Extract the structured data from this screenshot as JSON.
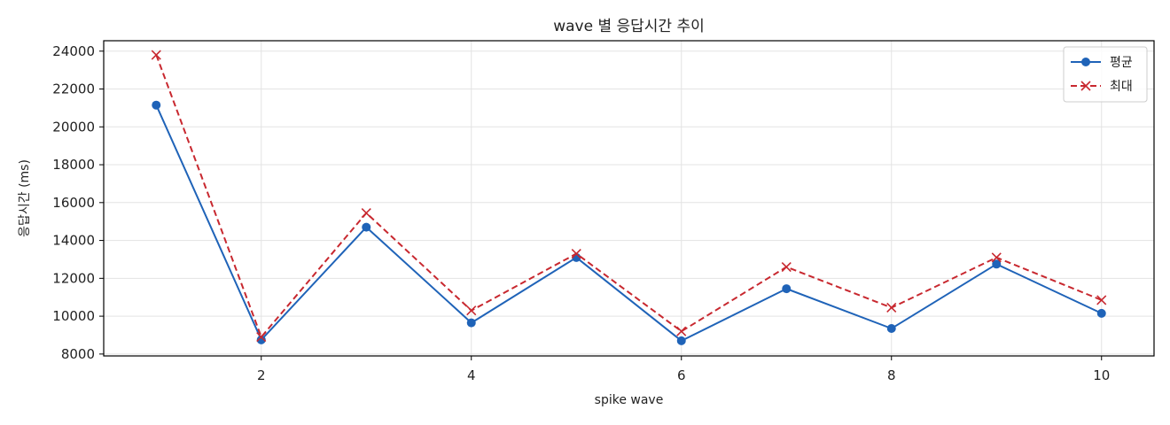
{
  "chart_data": {
    "type": "line",
    "title": "wave 별 응답시간 추이",
    "xlabel": "spike wave",
    "ylabel": "응답시간 (ms)",
    "x": [
      1,
      2,
      3,
      4,
      5,
      6,
      7,
      8,
      9,
      10
    ],
    "series": [
      {
        "name": "평균",
        "values": [
          21150,
          8750,
          14700,
          9650,
          13100,
          8700,
          11450,
          9350,
          12750,
          10150
        ],
        "color": "#1f63b8",
        "marker": "circle",
        "line_style": "solid"
      },
      {
        "name": "최대",
        "values": [
          23800,
          8900,
          15450,
          10300,
          13300,
          9200,
          12600,
          10450,
          13100,
          10850
        ],
        "color": "#c8282f",
        "marker": "x",
        "line_style": "dashed"
      }
    ],
    "xlim": [
      0.5,
      10.5
    ],
    "ylim": [
      7900,
      24550
    ],
    "xticks": [
      2,
      4,
      6,
      8,
      10
    ],
    "yticks": [
      8000,
      10000,
      12000,
      14000,
      16000,
      18000,
      20000,
      22000,
      24000
    ],
    "grid": true,
    "legend_position": "top-right"
  }
}
